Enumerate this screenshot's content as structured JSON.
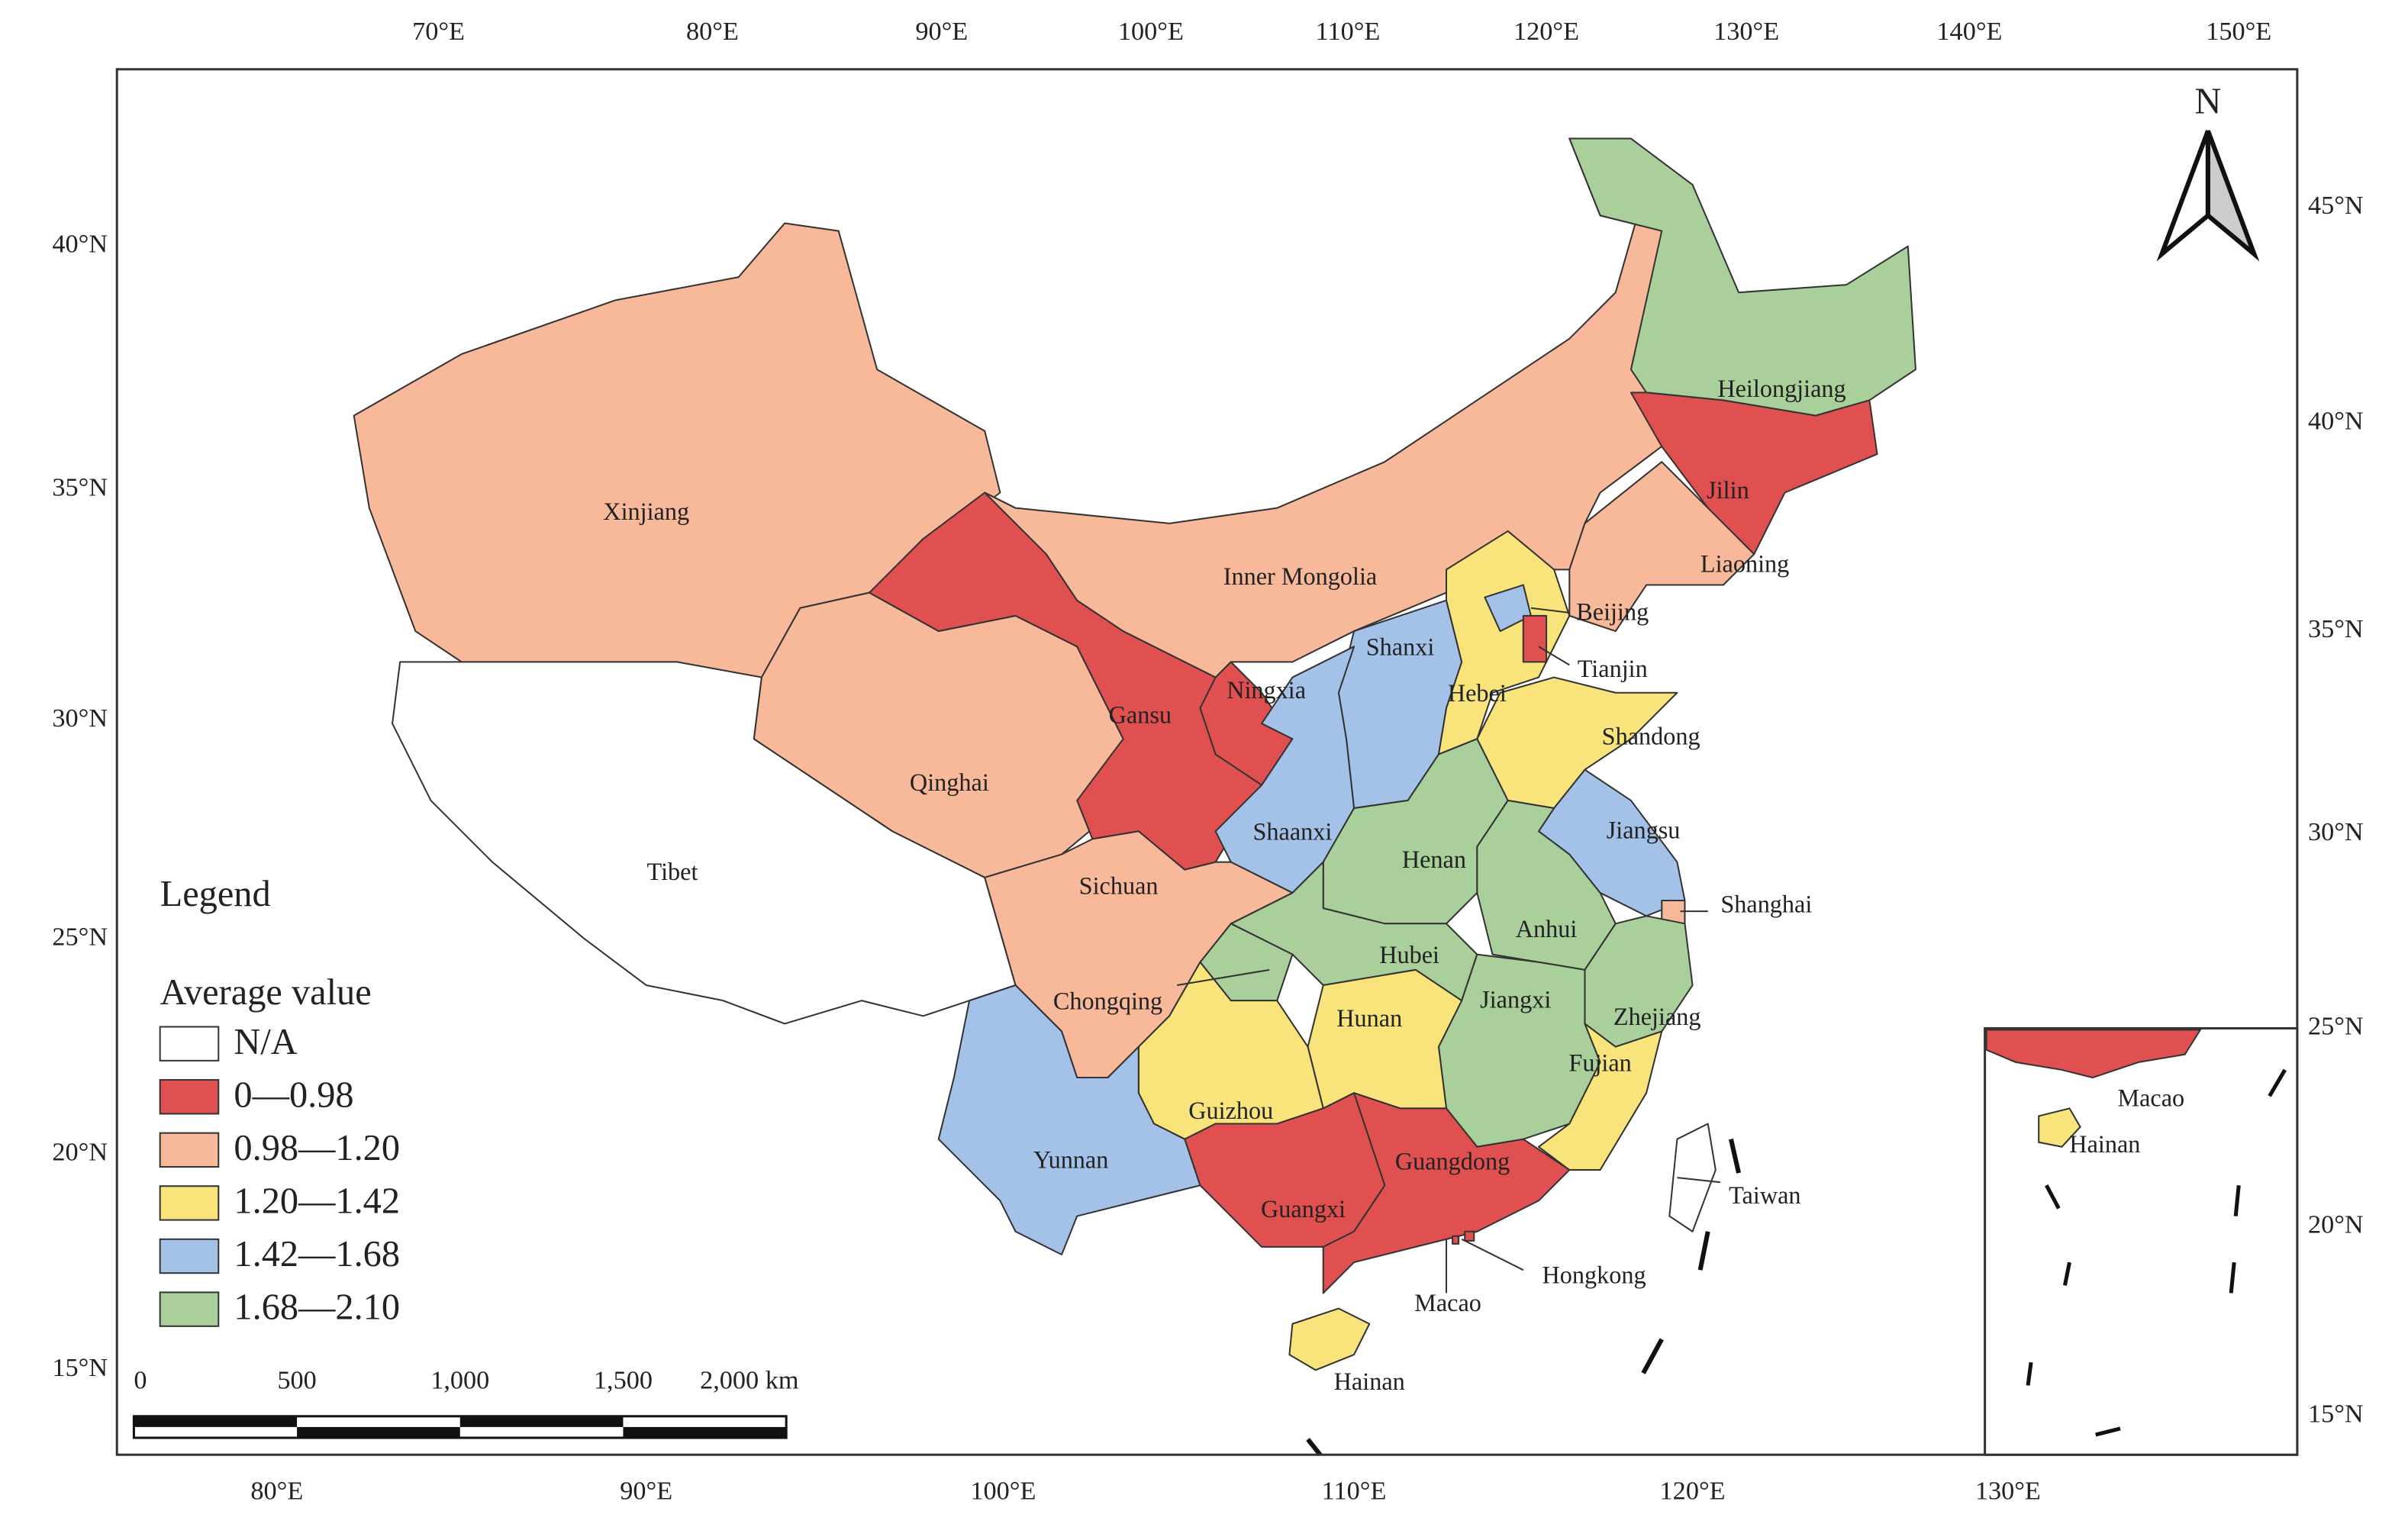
{
  "map": {
    "top_labels": [
      "70°E",
      "80°E",
      "90°E",
      "100°E",
      "110°E",
      "120°E",
      "130°E",
      "140°E",
      "150°E"
    ],
    "bottom_labels": [
      "80°E",
      "90°E",
      "100°E",
      "110°E",
      "120°E",
      "130°E"
    ],
    "left_labels": [
      "40°N",
      "35°N",
      "30°N",
      "25°N",
      "20°N",
      "15°N"
    ],
    "right_labels": [
      "45°N",
      "40°N",
      "35°N",
      "30°N",
      "25°N",
      "20°N",
      "15°N"
    ],
    "north": "N",
    "regions": [
      {
        "name": "Xinjiang",
        "color": "#f8b89a"
      },
      {
        "name": "Tibet",
        "color": "#ffffff"
      },
      {
        "name": "Qinghai",
        "color": "#f8b89a"
      },
      {
        "name": "Gansu",
        "color": "#e05050"
      },
      {
        "name": "Inner Mongolia",
        "color": "#f8b89a"
      },
      {
        "name": "Ningxia",
        "color": "#e05050"
      },
      {
        "name": "Heilongjiang",
        "color": "#a9cf9b"
      },
      {
        "name": "Jilin",
        "color": "#e05050"
      },
      {
        "name": "Liaoning",
        "color": "#f8b89a"
      },
      {
        "name": "Shanxi",
        "color": "#a4c2e8"
      },
      {
        "name": "Shaanxi",
        "color": "#a4c2e8"
      },
      {
        "name": "Hebei",
        "color": "#f8e47a"
      },
      {
        "name": "Beijing",
        "color": "#a4c2e8"
      },
      {
        "name": "Tianjin",
        "color": "#e05050"
      },
      {
        "name": "Shandong",
        "color": "#f8e47a"
      },
      {
        "name": "Henan",
        "color": "#a9cf9b"
      },
      {
        "name": "Jiangsu",
        "color": "#a4c2e8"
      },
      {
        "name": "Shanghai",
        "color": "#f8b89a"
      },
      {
        "name": "Anhui",
        "color": "#a9cf9b"
      },
      {
        "name": "Hubei",
        "color": "#a9cf9b"
      },
      {
        "name": "Zhejiang",
        "color": "#a9cf9b"
      },
      {
        "name": "Jiangxi",
        "color": "#a9cf9b"
      },
      {
        "name": "Fujian",
        "color": "#f8e47a"
      },
      {
        "name": "Hunan",
        "color": "#f8e47a"
      },
      {
        "name": "Chongqing",
        "color": "#a9cf9b"
      },
      {
        "name": "Sichuan",
        "color": "#f8b89a"
      },
      {
        "name": "Guizhou",
        "color": "#f8e47a"
      },
      {
        "name": "Yunnan",
        "color": "#a4c2e8"
      },
      {
        "name": "Guangxi",
        "color": "#e05050"
      },
      {
        "name": "Guangdong",
        "color": "#e05050"
      },
      {
        "name": "Hainan",
        "color": "#f8e47a"
      },
      {
        "name": "Taiwan",
        "color": "#ffffff"
      },
      {
        "name": "Hongkong",
        "color": "#e05050"
      },
      {
        "name": "Macao",
        "color": "#e05050"
      }
    ],
    "legend": {
      "title": "Legend",
      "subtitle": "Average value",
      "items": [
        {
          "label": "N/A",
          "color": "#ffffff"
        },
        {
          "label": "0—0.98",
          "color": "#e05050"
        },
        {
          "label": "0.98—1.20",
          "color": "#f8b89a"
        },
        {
          "label": "1.20—1.42",
          "color": "#f8e47a"
        },
        {
          "label": "1.42—1.68",
          "color": "#a4c2e8"
        },
        {
          "label": "1.68—2.10",
          "color": "#a9cf9b"
        }
      ]
    },
    "scale_bar": [
      "0",
      "500",
      "1,000",
      "1,500",
      "2,000 km"
    ],
    "inset": {
      "labels": [
        "Macao",
        "Hainan"
      ]
    }
  }
}
